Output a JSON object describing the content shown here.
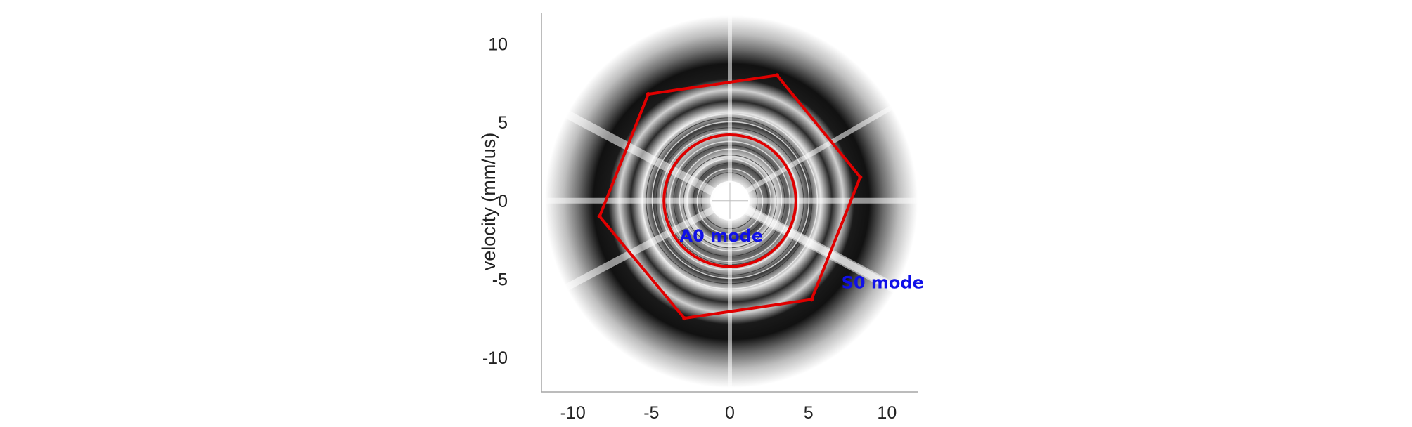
{
  "chart_data": {
    "type": "heatmap",
    "title": "",
    "xlabel": "",
    "ylabel": "velocity (mm/us)",
    "xlim": [
      -12,
      12
    ],
    "ylim": [
      -12.2,
      12
    ],
    "x_ticks": [
      -10,
      -5,
      0,
      5,
      10
    ],
    "y_ticks": [
      10,
      5,
      0,
      -5,
      -10
    ],
    "x_tick_labels": [
      "-10",
      "-5",
      "0",
      "5",
      "10"
    ],
    "y_tick_labels": [
      "10",
      "5",
      "0",
      "-5",
      "-10"
    ],
    "grid": false,
    "colormap": "grayscale (white = low, black = high)",
    "series": [
      {
        "name": "A0 mode",
        "shape": "circle",
        "center": [
          0,
          0
        ],
        "radius": 4.2,
        "color": "#e00000"
      },
      {
        "name": "S0 mode",
        "shape": "polygon",
        "vertices": [
          [
            3.0,
            8.0
          ],
          [
            8.3,
            1.5
          ],
          [
            5.2,
            -6.3
          ],
          [
            -2.9,
            -7.5
          ],
          [
            -8.3,
            -1.0
          ],
          [
            -5.2,
            6.8
          ]
        ],
        "color": "#e00000"
      }
    ],
    "annotations": [
      {
        "text": "A0 mode",
        "x": -3.2,
        "y": -2.6,
        "color": "#1010e8"
      },
      {
        "text": "S0 mode",
        "x": 7.1,
        "y": -5.6,
        "color": "#1010e8"
      }
    ]
  }
}
